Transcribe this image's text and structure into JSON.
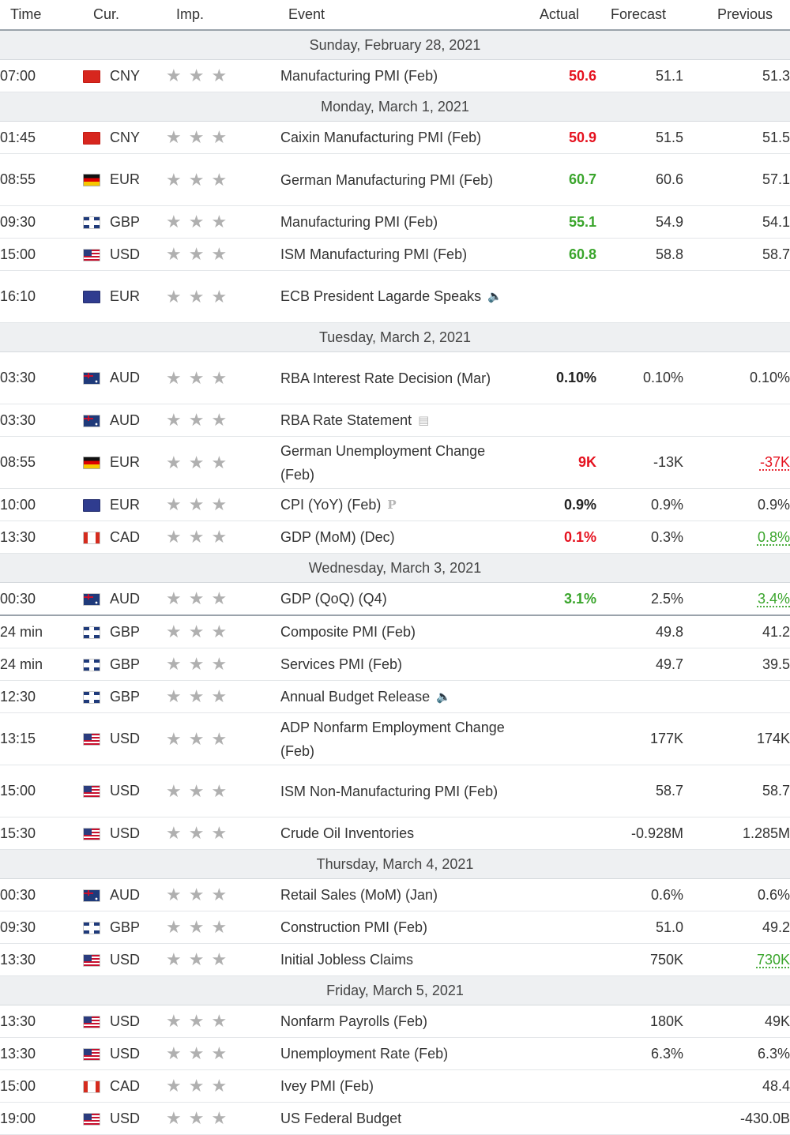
{
  "header": {
    "time": "Time",
    "currency": "Cur.",
    "importance": "Imp.",
    "event": "Event",
    "actual": "Actual",
    "forecast": "Forecast",
    "previous": "Previous"
  },
  "colors": {
    "negative": "#e5121f",
    "positive": "#3aa52c",
    "day_header_bg": "#eef0f2"
  },
  "days": [
    {
      "date": "Sunday, February 28, 2021",
      "events": [
        {
          "time": "07:00",
          "currency": "CNY",
          "flag": "cny-flag-icon",
          "event": "Manufacturing PMI (Feb)",
          "actual": "50.6",
          "actual_color": "red",
          "forecast": "51.1",
          "previous": "51.3"
        }
      ]
    },
    {
      "date": "Monday, March 1, 2021",
      "events": [
        {
          "time": "01:45",
          "currency": "CNY",
          "flag": "cny-flag-icon",
          "event": "Caixin Manufacturing PMI (Feb)",
          "actual": "50.9",
          "actual_color": "red",
          "forecast": "51.5",
          "previous": "51.5"
        },
        {
          "time": "08:55",
          "currency": "EUR",
          "flag": "germany-flag-icon",
          "event": "German Manufacturing PMI (Feb)",
          "actual": "60.7",
          "actual_color": "green",
          "forecast": "60.6",
          "previous": "57.1",
          "tall": true
        },
        {
          "time": "09:30",
          "currency": "GBP",
          "flag": "uk-flag-icon",
          "event": "Manufacturing PMI (Feb)",
          "actual": "55.1",
          "actual_color": "green",
          "forecast": "54.9",
          "previous": "54.1"
        },
        {
          "time": "15:00",
          "currency": "USD",
          "flag": "us-flag-icon",
          "event": "ISM Manufacturing PMI (Feb)",
          "actual": "60.8",
          "actual_color": "green",
          "forecast": "58.8",
          "previous": "58.7"
        },
        {
          "time": "16:10",
          "currency": "EUR",
          "flag": "eu-flag-icon",
          "event": "ECB President Lagarde Speaks",
          "icon": "speaker-icon",
          "actual": "",
          "forecast": "",
          "previous": "",
          "tall": true
        }
      ]
    },
    {
      "date": "Tuesday, March 2, 2021",
      "events": [
        {
          "time": "03:30",
          "currency": "AUD",
          "flag": "australia-flag-icon",
          "event": "RBA Interest Rate Decision (Mar)",
          "actual": "0.10%",
          "actual_color": "black",
          "forecast": "0.10%",
          "previous": "0.10%",
          "tall": true
        },
        {
          "time": "03:30",
          "currency": "AUD",
          "flag": "australia-flag-icon",
          "event": "RBA Rate Statement",
          "icon": "document-icon",
          "actual": "",
          "forecast": "",
          "previous": ""
        },
        {
          "time": "08:55",
          "currency": "EUR",
          "flag": "germany-flag-icon",
          "event": "German Unemployment Change (Feb)",
          "actual": "9K",
          "actual_color": "red",
          "forecast": "-13K",
          "previous": "-37K",
          "previous_color": "red",
          "previous_revised": true,
          "tall": true
        },
        {
          "time": "10:00",
          "currency": "EUR",
          "flag": "eu-flag-icon",
          "event": "CPI (YoY) (Feb)",
          "icon": "preliminary-icon",
          "actual": "0.9%",
          "actual_color": "black",
          "forecast": "0.9%",
          "previous": "0.9%"
        },
        {
          "time": "13:30",
          "currency": "CAD",
          "flag": "canada-flag-icon",
          "event": "GDP (MoM) (Dec)",
          "actual": "0.1%",
          "actual_color": "red",
          "forecast": "0.3%",
          "previous": "0.8%",
          "previous_color": "green",
          "previous_revised": true
        }
      ]
    },
    {
      "date": "Wednesday, March 3, 2021",
      "events": [
        {
          "time": "00:30",
          "currency": "AUD",
          "flag": "australia-flag-icon",
          "event": "GDP (QoQ) (Q4)",
          "actual": "3.1%",
          "actual_color": "green",
          "forecast": "2.5%",
          "previous": "3.4%",
          "previous_color": "green",
          "previous_revised": true,
          "separator": true
        },
        {
          "time": "24 min",
          "currency": "GBP",
          "flag": "uk-flag-icon",
          "event": "Composite PMI (Feb)",
          "actual": "",
          "forecast": "49.8",
          "previous": "41.2"
        },
        {
          "time": "24 min",
          "currency": "GBP",
          "flag": "uk-flag-icon",
          "event": "Services PMI (Feb)",
          "actual": "",
          "forecast": "49.7",
          "previous": "39.5"
        },
        {
          "time": "12:30",
          "currency": "GBP",
          "flag": "uk-flag-icon",
          "event": "Annual Budget Release",
          "icon": "speaker-icon",
          "actual": "",
          "forecast": "",
          "previous": ""
        },
        {
          "time": "13:15",
          "currency": "USD",
          "flag": "us-flag-icon",
          "event": "ADP Nonfarm Employment Change (Feb)",
          "actual": "",
          "forecast": "177K",
          "previous": "174K",
          "tall": true
        },
        {
          "time": "15:00",
          "currency": "USD",
          "flag": "us-flag-icon",
          "event": "ISM Non-Manufacturing PMI (Feb)",
          "actual": "",
          "forecast": "58.7",
          "previous": "58.7",
          "tall": true
        },
        {
          "time": "15:30",
          "currency": "USD",
          "flag": "us-flag-icon",
          "event": "Crude Oil Inventories",
          "actual": "",
          "forecast": "-0.928M",
          "previous": "1.285M"
        }
      ]
    },
    {
      "date": "Thursday, March 4, 2021",
      "events": [
        {
          "time": "00:30",
          "currency": "AUD",
          "flag": "australia-flag-icon",
          "event": "Retail Sales (MoM) (Jan)",
          "actual": "",
          "forecast": "0.6%",
          "previous": "0.6%"
        },
        {
          "time": "09:30",
          "currency": "GBP",
          "flag": "uk-flag-icon",
          "event": "Construction PMI (Feb)",
          "actual": "",
          "forecast": "51.0",
          "previous": "49.2"
        },
        {
          "time": "13:30",
          "currency": "USD",
          "flag": "us-flag-icon",
          "event": "Initial Jobless Claims",
          "actual": "",
          "forecast": "750K",
          "previous": "730K",
          "previous_color": "green",
          "previous_revised": true
        }
      ]
    },
    {
      "date": "Friday, March 5, 2021",
      "events": [
        {
          "time": "13:30",
          "currency": "USD",
          "flag": "us-flag-icon",
          "event": "Nonfarm Payrolls (Feb)",
          "actual": "",
          "forecast": "180K",
          "previous": "49K"
        },
        {
          "time": "13:30",
          "currency": "USD",
          "flag": "us-flag-icon",
          "event": "Unemployment Rate (Feb)",
          "actual": "",
          "forecast": "6.3%",
          "previous": "6.3%"
        },
        {
          "time": "15:00",
          "currency": "CAD",
          "flag": "canada-flag-icon",
          "event": "Ivey PMI (Feb)",
          "actual": "",
          "forecast": "",
          "previous": "48.4"
        },
        {
          "time": "19:00",
          "currency": "USD",
          "flag": "us-flag-icon",
          "event": "US Federal Budget",
          "actual": "",
          "forecast": "",
          "previous": "-430.0B"
        }
      ]
    }
  ],
  "importance_stars": "★★★"
}
